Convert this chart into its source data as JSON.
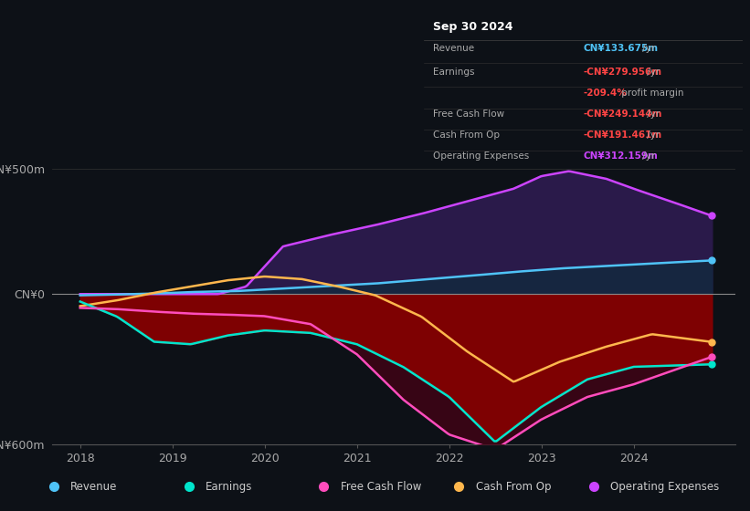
{
  "bg_color": "#0d1117",
  "plot_bg_color": "#0d1117",
  "ylim": [
    -600,
    500
  ],
  "xlim": [
    2017.7,
    2025.1
  ],
  "xticks": [
    2018,
    2019,
    2020,
    2021,
    2022,
    2023,
    2024
  ],
  "colors": {
    "revenue": "#4fc3f7",
    "earnings": "#00e5cc",
    "free_cash_flow": "#ff4dbd",
    "cash_from_op": "#ffb74d",
    "operating_expenses": "#cc44ff"
  },
  "tooltip": {
    "date": "Sep 30 2024",
    "revenue_label": "Revenue",
    "revenue_value": "CN¥133.675m",
    "earnings_label": "Earnings",
    "earnings_value": "-CN¥279.956m",
    "profit_margin": "-209.4%",
    "fcf_label": "Free Cash Flow",
    "fcf_value": "-CN¥249.144m",
    "cfo_label": "Cash From Op",
    "cfo_value": "-CN¥191.461m",
    "opex_label": "Operating Expenses",
    "opex_value": "CN¥312.159m"
  },
  "legend": [
    {
      "label": "Revenue",
      "color": "#4fc3f7"
    },
    {
      "label": "Earnings",
      "color": "#00e5cc"
    },
    {
      "label": "Free Cash Flow",
      "color": "#ff4dbd"
    },
    {
      "label": "Cash From Op",
      "color": "#ffb74d"
    },
    {
      "label": "Operating Expenses",
      "color": "#cc44ff"
    }
  ]
}
